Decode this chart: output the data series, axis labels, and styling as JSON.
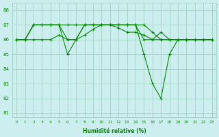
{
  "xlabel": "Humidité relative (%)",
  "x": [
    0,
    1,
    2,
    3,
    4,
    5,
    6,
    7,
    8,
    9,
    10,
    11,
    12,
    13,
    14,
    15,
    16,
    17,
    18,
    19,
    20,
    21,
    22,
    23
  ],
  "s1": [
    86,
    86,
    87,
    87,
    87,
    87,
    87,
    87,
    87,
    87,
    87,
    87,
    87,
    87,
    87,
    87,
    86.5,
    86,
    86,
    86,
    86,
    86,
    86,
    86
  ],
  "s2": [
    86,
    86,
    87,
    87,
    87,
    87,
    86,
    86,
    87,
    87,
    87,
    87,
    87,
    87,
    87,
    86,
    86,
    86.5,
    86,
    86,
    86,
    86,
    86,
    86
  ],
  "s3": [
    86,
    86,
    86,
    86,
    86,
    86.3,
    86,
    86,
    86.3,
    86.7,
    87,
    87,
    86.8,
    86.5,
    86.5,
    86.3,
    86,
    86,
    86,
    86,
    86,
    86,
    86,
    86
  ],
  "s4": [
    86,
    86,
    87,
    87,
    87,
    87,
    85,
    86,
    87,
    87,
    87,
    87,
    87,
    87,
    87,
    85,
    83,
    82,
    85,
    86,
    86,
    86,
    86,
    86
  ],
  "line_color": "#008800",
  "bg_color": "#cceeee",
  "grid_color": "#99ccbb",
  "text_color": "#008800",
  "ylim": [
    80.7,
    88.5
  ],
  "yticks": [
    81,
    82,
    83,
    84,
    85,
    86,
    87,
    88
  ],
  "marker": "+",
  "markersize": 3.0,
  "linewidth": 0.8
}
